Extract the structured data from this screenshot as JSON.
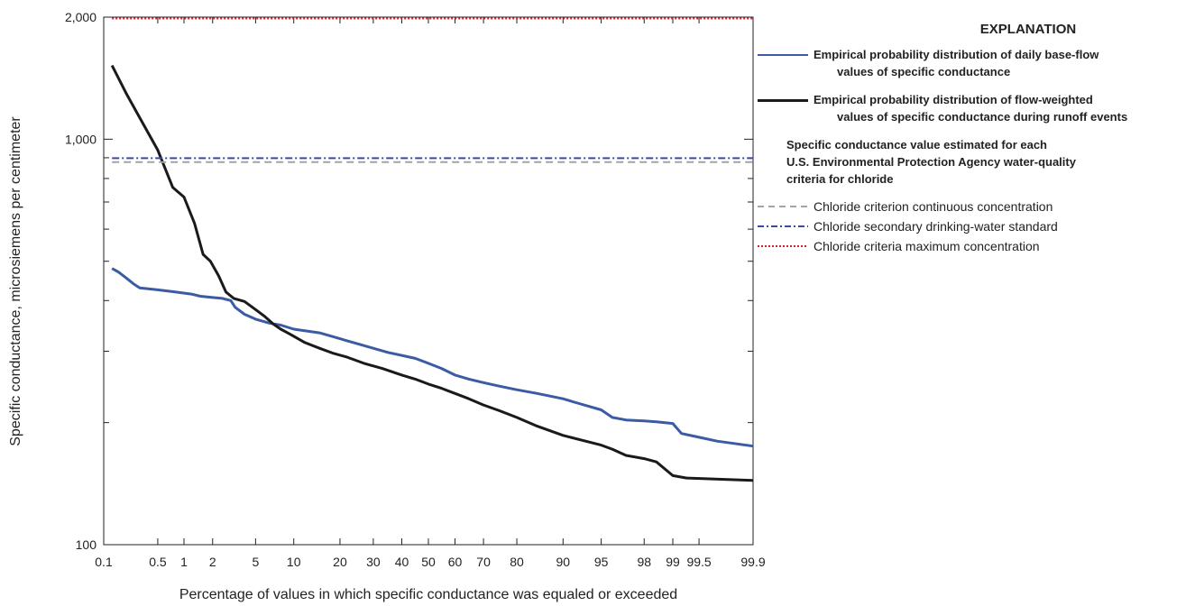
{
  "chart_data": {
    "type": "line",
    "xlabel": "Percentage of values in which specific conductance was equaled or exceeded",
    "ylabel": "Specific conductance, microsiemens per centimeter",
    "x_scale": "normal-probability",
    "y_scale": "log",
    "xlim": [
      0.1,
      99.9
    ],
    "ylim": [
      100,
      2000
    ],
    "x_ticks": [
      0.1,
      0.5,
      1,
      2,
      5,
      10,
      20,
      30,
      40,
      50,
      60,
      70,
      80,
      90,
      95,
      98,
      99,
      99.5,
      99.9
    ],
    "x_tick_labels": [
      "0.1",
      "0.5",
      "1",
      "2",
      "5",
      "10",
      "20",
      "30",
      "40",
      "50",
      "60",
      "70",
      "80",
      "90",
      "95",
      "98",
      "99",
      "99.5",
      "99.9"
    ],
    "y_major_ticks": [
      100,
      1000,
      2000
    ],
    "y_major_tick_labels": [
      "100",
      "1,000",
      "2,000"
    ],
    "y_minor_ticks": [
      200,
      300,
      400,
      500,
      600,
      700,
      800,
      900
    ],
    "grid": false,
    "legend_position": "right",
    "series": [
      {
        "name": "Empirical probability distribution of daily base-flow values of specific conductance",
        "color": "#3b5ba5",
        "style": "solid",
        "x": [
          0.13,
          0.16,
          0.2,
          0.25,
          0.3,
          0.5,
          0.8,
          1.2,
          1.5,
          2.0,
          2.5,
          3.0,
          3.3,
          4.0,
          5.0,
          6.5,
          8.0,
          10,
          15,
          20,
          25,
          30,
          35,
          40,
          45,
          50,
          55,
          60,
          65,
          70,
          75,
          80,
          85,
          90,
          92,
          95,
          96,
          97,
          98,
          98.5,
          99.0,
          99.2,
          99.5,
          99.7,
          99.9
        ],
        "y": [
          480,
          470,
          455,
          440,
          430,
          425,
          420,
          415,
          410,
          407,
          405,
          400,
          385,
          370,
          360,
          352,
          348,
          340,
          333,
          322,
          313,
          305,
          298,
          293,
          288,
          280,
          272,
          262,
          256,
          251,
          246,
          241,
          236,
          229,
          224,
          215,
          206,
          203,
          202,
          201,
          199,
          188,
          184,
          180,
          175
        ]
      },
      {
        "name": "Empirical probability distribution of flow-weighted values of specific conductance during runoff events",
        "color": "#1a1a1a",
        "style": "solid",
        "x": [
          0.13,
          0.2,
          0.3,
          0.5,
          0.75,
          1.0,
          1.3,
          1.6,
          1.9,
          2.3,
          2.7,
          3.2,
          4.0,
          5.0,
          6.0,
          7.0,
          8.0,
          9.5,
          12,
          15,
          18,
          22,
          27,
          33,
          40,
          45,
          50,
          55,
          60,
          65,
          70,
          75,
          80,
          85,
          90,
          95,
          96,
          97,
          98,
          98.5,
          99.0,
          99.3,
          99.9
        ],
        "y": [
          1520,
          1300,
          1130,
          940,
          760,
          720,
          620,
          520,
          500,
          460,
          420,
          405,
          398,
          380,
          365,
          350,
          340,
          330,
          315,
          305,
          297,
          290,
          280,
          272,
          262,
          256,
          249,
          243,
          236,
          229,
          221,
          214,
          206,
          196,
          186,
          176,
          172,
          166,
          163,
          160,
          148,
          146,
          144
        ]
      },
      {
        "name": "Chloride criterion continuous concentration",
        "color": "#a3a3a3",
        "style": "dashed",
        "x": [
          0.13,
          99.9
        ],
        "y": [
          878,
          878
        ]
      },
      {
        "name": "Chloride secondary drinking-water standard",
        "color": "#3a4aa0",
        "style": "dashdot",
        "x": [
          0.13,
          99.9
        ],
        "y": [
          898,
          898
        ]
      },
      {
        "name": "Chloride criteria maximum concentration",
        "color": "#d6202a",
        "style": "dotted",
        "x": [
          0.13,
          99.9
        ],
        "y": [
          1985,
          1985
        ]
      }
    ]
  },
  "legend": {
    "title": "EXPLANATION",
    "base_flow_line1": "Empirical probability distribution of daily base-flow",
    "base_flow_line2": "values of specific conductance",
    "runoff_line1": "Empirical probability distribution of flow-weighted",
    "runoff_line2": "values of specific conductance during runoff events",
    "subhead_line1": "Specific conductance value estimated for each",
    "subhead_line2": "U.S. Environmental  Protection Agency water-quality",
    "subhead_line3": "criteria for chloride",
    "continuous": "Chloride criterion continuous concentration",
    "secondary": "Chloride secondary drinking-water standard",
    "maximum": "Chloride criteria maximum concentration"
  }
}
